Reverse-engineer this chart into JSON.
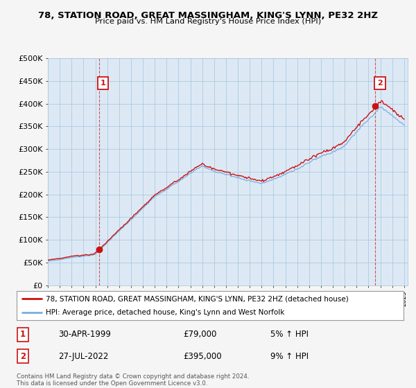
{
  "title": "78, STATION ROAD, GREAT MASSINGHAM, KING'S LYNN, PE32 2HZ",
  "subtitle": "Price paid vs. HM Land Registry's House Price Index (HPI)",
  "ylabel_ticks": [
    "£0",
    "£50K",
    "£100K",
    "£150K",
    "£200K",
    "£250K",
    "£300K",
    "£350K",
    "£400K",
    "£450K",
    "£500K"
  ],
  "ytick_values": [
    0,
    50000,
    100000,
    150000,
    200000,
    250000,
    300000,
    350000,
    400000,
    450000,
    500000
  ],
  "ylim": [
    0,
    500000
  ],
  "xlim_start": 1995.0,
  "xlim_end": 2025.3,
  "sale1_x": 1999.33,
  "sale1_y": 79000,
  "sale1_label": "1",
  "sale1_date": "30-APR-1999",
  "sale1_price": "£79,000",
  "sale1_hpi": "5% ↑ HPI",
  "sale2_x": 2022.58,
  "sale2_y": 395000,
  "sale2_label": "2",
  "sale2_date": "27-JUL-2022",
  "sale2_price": "£395,000",
  "sale2_hpi": "9% ↑ HPI",
  "hpi_color": "#7aadde",
  "price_color": "#cc1111",
  "dashed_color": "#cc1111",
  "plot_bg_color": "#dce9f5",
  "background_color": "#f5f5f5",
  "grid_color": "#aec8df",
  "legend_label_red": "78, STATION ROAD, GREAT MASSINGHAM, KING'S LYNN, PE32 2HZ (detached house)",
  "legend_label_blue": "HPI: Average price, detached house, King's Lynn and West Norfolk",
  "footer": "Contains HM Land Registry data © Crown copyright and database right 2024.\nThis data is licensed under the Open Government Licence v3.0."
}
